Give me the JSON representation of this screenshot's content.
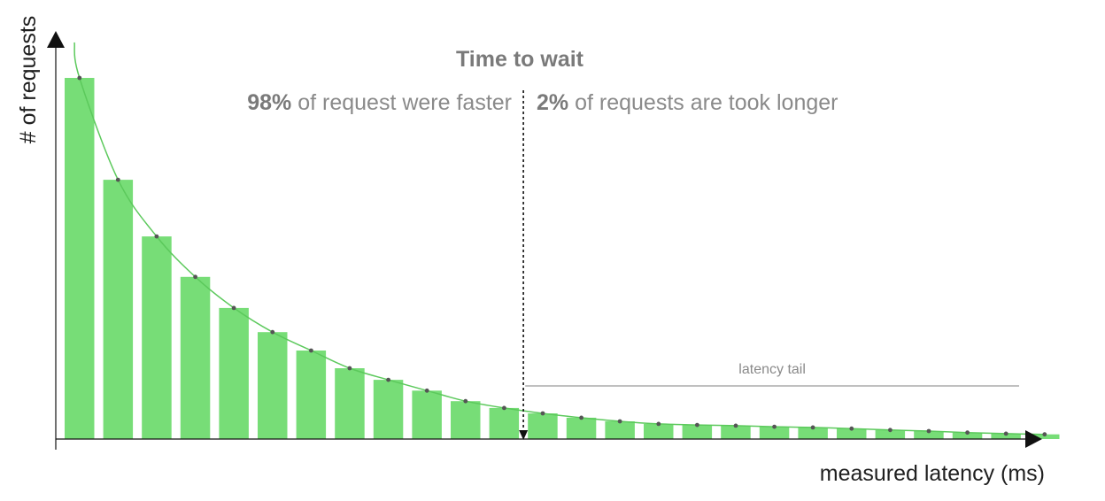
{
  "chart_data": {
    "type": "bar",
    "title": "Time to wait",
    "ylabel": "# of requests",
    "xlabel": "measured latency (ms)",
    "ylim": [
      0,
      100
    ],
    "bar_color": "#77dd77",
    "curve_color": "#5cc95c",
    "dot_color": "#555555",
    "values": [
      100,
      71.8,
      56.1,
      44.9,
      36.3,
      29.6,
      24.5,
      19.6,
      16.4,
      13.4,
      10.5,
      8.6,
      7.1,
      5.9,
      4.9,
      4.2,
      3.9,
      3.7,
      3.4,
      3.2,
      2.9,
      2.5,
      2.2,
      1.8,
      1.5,
      1.3
    ],
    "threshold": {
      "after_bar_index": 11,
      "left_label": {
        "bold": "98%",
        "rest": " of request were faster"
      },
      "right_label": {
        "bold": "2%",
        "rest": " of requests are took longer"
      }
    },
    "annotation": {
      "text": "latency tail",
      "from_bar_index": 12
    }
  }
}
